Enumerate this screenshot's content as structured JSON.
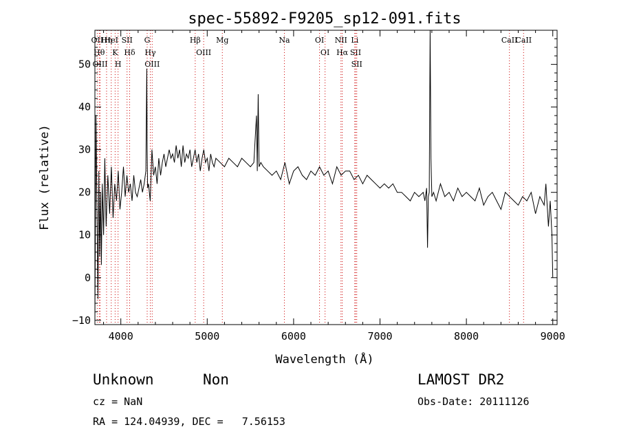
{
  "chart_data": {
    "type": "line",
    "title": "spec-55892-F9205_sp12-091.fits",
    "xlabel": "Wavelength (Å)",
    "ylabel": "Flux (relative)",
    "xlim": [
      3700,
      9050
    ],
    "ylim": [
      -11,
      58
    ],
    "xticks": [
      4000,
      5000,
      6000,
      7000,
      8000,
      9000
    ],
    "yticks": [
      -10,
      0,
      10,
      20,
      30,
      40,
      50
    ],
    "grid": false,
    "series": [
      {
        "x": [
          3700,
          3712,
          3725,
          3735,
          3745,
          3755,
          3765,
          3775,
          3785,
          3800,
          3815,
          3830,
          3850,
          3870,
          3890,
          3910,
          3930,
          3950,
          3970,
          3990,
          4010,
          4030,
          4050,
          4070,
          4090,
          4110,
          4130,
          4150,
          4170,
          4190,
          4210,
          4230,
          4250,
          4270,
          4290,
          4300,
          4305,
          4310,
          4320,
          4340,
          4360,
          4380,
          4400,
          4420,
          4440,
          4460,
          4480,
          4500,
          4520,
          4540,
          4560,
          4580,
          4600,
          4620,
          4640,
          4660,
          4680,
          4700,
          4720,
          4740,
          4760,
          4780,
          4800,
          4820,
          4840,
          4860,
          4880,
          4900,
          4920,
          4940,
          4960,
          4980,
          5000,
          5020,
          5040,
          5060,
          5080,
          5100,
          5150,
          5200,
          5250,
          5300,
          5350,
          5400,
          5450,
          5500,
          5540,
          5570,
          5580,
          5590,
          5600,
          5620,
          5650,
          5700,
          5750,
          5800,
          5850,
          5900,
          5950,
          6000,
          6050,
          6100,
          6150,
          6200,
          6250,
          6300,
          6350,
          6400,
          6450,
          6500,
          6550,
          6600,
          6650,
          6700,
          6750,
          6800,
          6850,
          6900,
          6950,
          7000,
          7050,
          7100,
          7150,
          7200,
          7250,
          7300,
          7350,
          7400,
          7450,
          7500,
          7520,
          7540,
          7550,
          7560,
          7570,
          7580,
          7590,
          7600,
          7620,
          7650,
          7700,
          7750,
          7800,
          7850,
          7900,
          7950,
          8000,
          8050,
          8100,
          8150,
          8200,
          8250,
          8300,
          8350,
          8400,
          8450,
          8500,
          8550,
          8600,
          8650,
          8700,
          8750,
          8800,
          8850,
          8900,
          8920,
          8950,
          8970,
          8990,
          9000
        ],
        "y": [
          -10,
          38,
          15,
          -5,
          25,
          5,
          20,
          3,
          22,
          10,
          28,
          12,
          24,
          15,
          26,
          14,
          22,
          18,
          25,
          16,
          20,
          26,
          19,
          24,
          20,
          22,
          18,
          24,
          20,
          19,
          21,
          23,
          20,
          22,
          25,
          49,
          30,
          21,
          22,
          18,
          30,
          24,
          26,
          22,
          28,
          24,
          27,
          29,
          26,
          28,
          30,
          28,
          29,
          27,
          31,
          28,
          30,
          26,
          31,
          27,
          29,
          28,
          30,
          26,
          28,
          30,
          27,
          29,
          25,
          28,
          30,
          27,
          28,
          25,
          29,
          27,
          26,
          28,
          27,
          26,
          28,
          27,
          26,
          28,
          27,
          26,
          27,
          38,
          25,
          43,
          26,
          27,
          26,
          25,
          24,
          25,
          23,
          27,
          22,
          25,
          26,
          24,
          23,
          25,
          24,
          26,
          24,
          25,
          22,
          26,
          24,
          25,
          25,
          23,
          24,
          22,
          24,
          23,
          22,
          21,
          22,
          21,
          22,
          20,
          20,
          19,
          18,
          20,
          19,
          20,
          18,
          21,
          7,
          19,
          20,
          59,
          28,
          19,
          20,
          18,
          22,
          19,
          20,
          18,
          21,
          19,
          20,
          19,
          18,
          21,
          17,
          19,
          20,
          18,
          16,
          20,
          19,
          18,
          17,
          19,
          18,
          20,
          15,
          19,
          17,
          22,
          12,
          18,
          10,
          0
        ]
      }
    ],
    "line_markers": [
      {
        "label": "OII",
        "x": 3727
      },
      {
        "label": "Hθ",
        "x": 3750
      },
      {
        "label": "OIII",
        "x": 3760
      },
      {
        "label": "Hη",
        "x": 3835
      },
      {
        "label": "HeI",
        "x": 3889
      },
      {
        "label": "K",
        "x": 3934
      },
      {
        "label": "H",
        "x": 3968
      },
      {
        "label": "SII",
        "x": 4072
      },
      {
        "label": "Hδ",
        "x": 4102
      },
      {
        "label": "G",
        "x": 4305
      },
      {
        "label": "Hγ",
        "x": 4341
      },
      {
        "label": "OIII",
        "x": 4363
      },
      {
        "label": "Hβ",
        "x": 4861
      },
      {
        "label": "OIII",
        "x": 4959
      },
      {
        "label": "Mg",
        "x": 5175
      },
      {
        "label": "Na",
        "x": 5893
      },
      {
        "label": "OI",
        "x": 6300
      },
      {
        "label": "OI",
        "x": 6364
      },
      {
        "label": "NII",
        "x": 6548
      },
      {
        "label": "Hα",
        "x": 6563
      },
      {
        "label": "Li",
        "x": 6708
      },
      {
        "label": "SII",
        "x": 6717
      },
      {
        "label": "SII",
        "x": 6731
      },
      {
        "label": "CaII",
        "x": 8498
      },
      {
        "label": "CaII",
        "x": 8662
      }
    ]
  },
  "info": {
    "class": "Unknown",
    "subclass": "Non",
    "survey": "LAMOST DR2",
    "cz": "cz = NaN",
    "obs_date": "Obs-Date: 20111126",
    "coords": "RA = 124.04939, DEC =   7.56153"
  }
}
